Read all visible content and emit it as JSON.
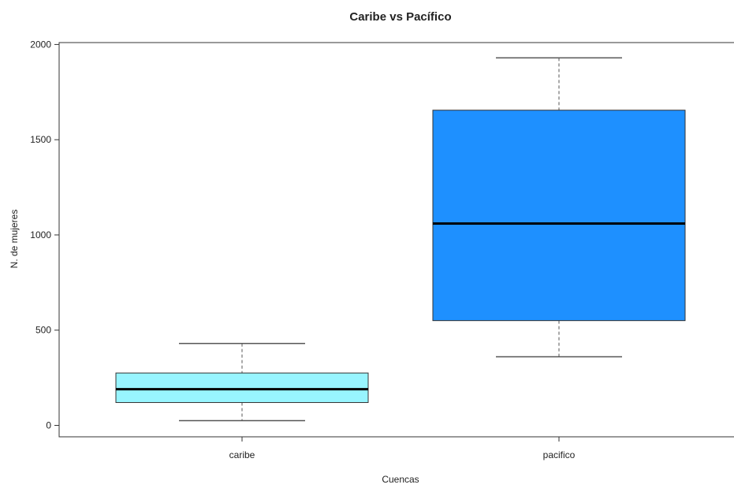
{
  "chart_data": {
    "type": "boxplot",
    "title": "Caribe vs Pacífico",
    "xlabel": "Cuencas",
    "ylabel": "N. de mujeres",
    "ylim": [
      -60,
      2010
    ],
    "y_ticks": [
      0,
      500,
      1000,
      1500,
      2000
    ],
    "grid": false,
    "categories": [
      "caribe",
      "pacifico"
    ],
    "boxes": [
      {
        "category": "caribe",
        "whisker_low": 25,
        "q1": 120,
        "median": 190,
        "q3": 275,
        "whisker_high": 430,
        "color": "#98f5ff"
      },
      {
        "category": "pacifico",
        "whisker_low": 360,
        "q1": 550,
        "median": 1060,
        "q3": 1655,
        "whisker_high": 1930,
        "color": "#1e90ff"
      }
    ]
  }
}
